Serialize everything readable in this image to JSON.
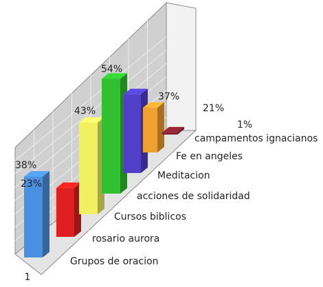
{
  "chart_data": {
    "type": "bar3d",
    "categories": [
      "Grupos de oracion",
      "rosario aurora",
      "Cursos biblicos",
      "acciones de solidaridad",
      "Meditacion",
      "Fe en angeles",
      "campamentos ignacianos"
    ],
    "values": [
      38,
      23,
      43,
      54,
      37,
      21,
      1
    ],
    "value_labels": [
      "38%",
      "23%",
      "43%",
      "54%",
      "37%",
      "21%",
      "1%"
    ],
    "colors": [
      "#4a90e0",
      "#e02020",
      "#f0f060",
      "#30c030",
      "#5040c8",
      "#f0a030",
      "#882030"
    ],
    "series_label": "1"
  }
}
